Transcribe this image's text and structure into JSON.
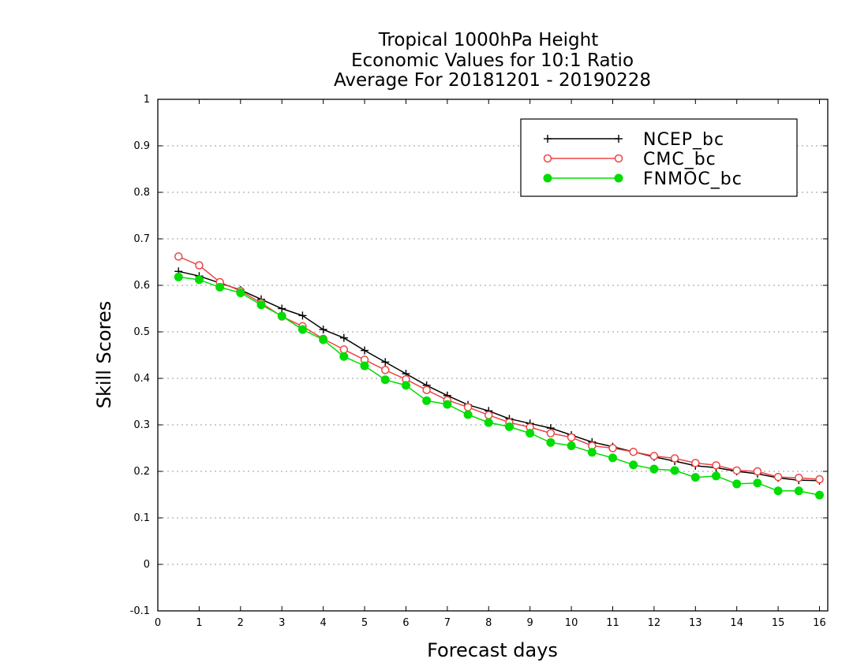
{
  "chart_data": {
    "type": "line",
    "title": [
      "Tropical 1000hPa Height",
      "Economic Values for 10:1 Ratio",
      "Average For 20181201 - 20190228"
    ],
    "xlabel": "Forecast days",
    "ylabel": "Skill Scores",
    "xlim": [
      0,
      16.2
    ],
    "ylim": [
      -0.1,
      1
    ],
    "xticks": [
      0,
      1,
      2,
      3,
      4,
      5,
      6,
      7,
      8,
      9,
      10,
      11,
      12,
      13,
      14,
      15,
      16
    ],
    "xtick_labels": [
      "0",
      "1",
      "2",
      "3",
      "4",
      "5",
      "6",
      "7",
      "8",
      "9",
      "10",
      "11",
      "12",
      "13",
      "14",
      "15",
      "16"
    ],
    "yticks": [
      -0.1,
      0,
      0.1,
      0.2,
      0.3,
      0.4,
      0.5,
      0.6,
      0.7,
      0.8,
      0.9,
      1
    ],
    "ytick_labels": [
      "-0.1",
      "0",
      "0.1",
      "0.2",
      "0.3",
      "0.4",
      "0.5",
      "0.6",
      "0.7",
      "0.8",
      "0.9",
      "1"
    ],
    "grid": "horizontal dotted",
    "legend_position": "top-right",
    "x": [
      0.5,
      1,
      1.5,
      2,
      2.5,
      3,
      3.5,
      4,
      4.5,
      5,
      5.5,
      6,
      6.5,
      7,
      7.5,
      8,
      8.5,
      9,
      9.5,
      10,
      10.5,
      11,
      11.5,
      12,
      12.5,
      13,
      13.5,
      14,
      14.5,
      15,
      15.5,
      16
    ],
    "series": [
      {
        "name": "NCEP_bc",
        "color": "#000000",
        "marker": "plus",
        "values": [
          0.63,
          0.62,
          0.605,
          0.59,
          0.57,
          0.55,
          0.535,
          0.505,
          0.487,
          0.46,
          0.435,
          0.41,
          0.385,
          0.363,
          0.343,
          0.33,
          0.313,
          0.303,
          0.293,
          0.278,
          0.263,
          0.253,
          0.242,
          0.231,
          0.222,
          0.212,
          0.208,
          0.2,
          0.195,
          0.186,
          0.181,
          0.18
        ]
      },
      {
        "name": "CMC_bc",
        "color": "#ee4444",
        "marker": "open-circle",
        "values": [
          0.662,
          0.643,
          0.607,
          0.588,
          0.562,
          0.533,
          0.512,
          0.485,
          0.462,
          0.44,
          0.418,
          0.398,
          0.375,
          0.353,
          0.338,
          0.321,
          0.305,
          0.295,
          0.282,
          0.273,
          0.255,
          0.25,
          0.242,
          0.233,
          0.228,
          0.218,
          0.213,
          0.202,
          0.2,
          0.188,
          0.186,
          0.183
        ]
      },
      {
        "name": "FNMOC_bc",
        "color": "#00dd00",
        "marker": "filled-circle",
        "values": [
          0.618,
          0.612,
          0.596,
          0.584,
          0.558,
          0.534,
          0.505,
          0.483,
          0.447,
          0.427,
          0.397,
          0.385,
          0.352,
          0.344,
          0.322,
          0.305,
          0.296,
          0.282,
          0.262,
          0.255,
          0.241,
          0.229,
          0.214,
          0.205,
          0.202,
          0.187,
          0.19,
          0.173,
          0.175,
          0.158,
          0.158,
          0.149
        ]
      }
    ]
  }
}
